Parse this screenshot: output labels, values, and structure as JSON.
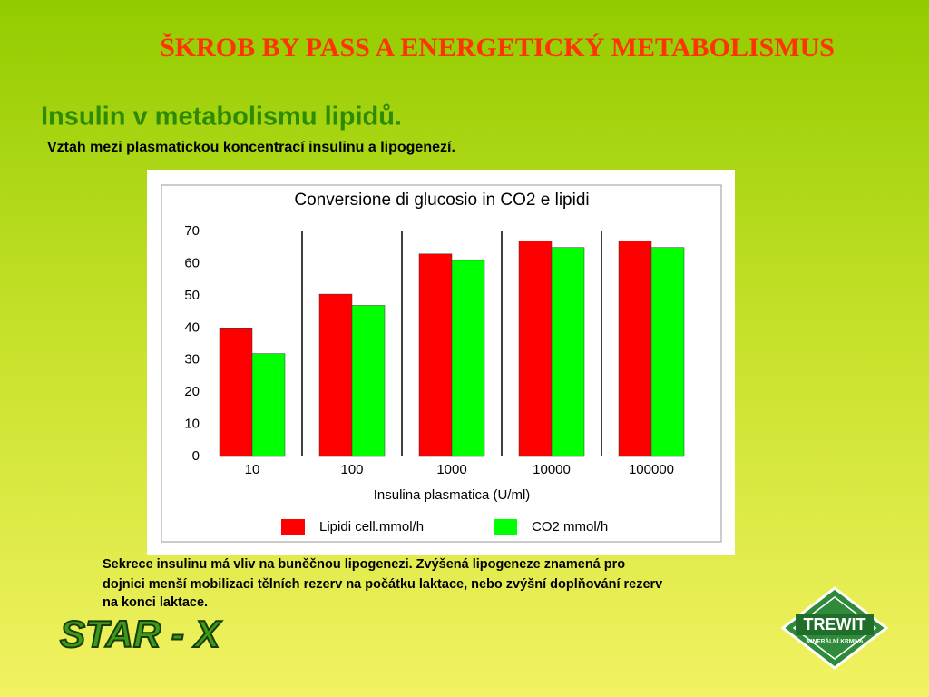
{
  "header": {
    "title": "ŠKROB BY PASS  A ENERGETICKÝ METABOLISMUS",
    "subtitle": "Insulin v metabolismu lipidů.",
    "lead": "Vztah mezi plasmatickou koncentrací insulinu a lipogenezí."
  },
  "chart_data": {
    "type": "bar",
    "title": "Conversione di glucosio in CO2 e lipidi",
    "x_label": "Insulina plasmatica (U/ml)",
    "categories": [
      "10",
      "100",
      "1000",
      "10000",
      "100000"
    ],
    "series": [
      {
        "name": "Lipidi cell.mmol/h",
        "color": "#ff0000",
        "values": [
          40,
          50.5,
          63,
          67,
          67
        ]
      },
      {
        "name": "CO2 mmol/h",
        "color": "#00ff00",
        "values": [
          32,
          47,
          61,
          65,
          65
        ]
      }
    ],
    "ylim": [
      0,
      70
    ],
    "yticks": [
      0,
      10,
      20,
      30,
      40,
      50,
      60,
      70
    ],
    "grid": false,
    "legend": "bottom"
  },
  "caption": {
    "lines": [
      "Sekrece  insulinu má vliv na buněčnou lipogenezi. Zvýšená lipogeneze znamená  pro",
      "dojnici menší mobilizaci tělních rezerv na počátku laktace, nebo zvýšní doplňování rezerv",
      "na konci laktace."
    ]
  },
  "logos": {
    "left": "STAR - X",
    "right": "TREWIT",
    "right_sub": "MINERÁLNÍ KRMIVA"
  }
}
